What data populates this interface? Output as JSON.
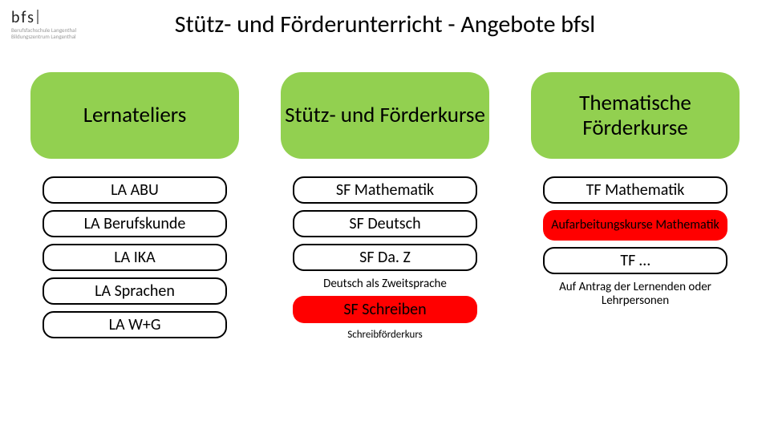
{
  "logo": {
    "text": "bfs",
    "sub1": "Berufsfachschule Langenthal",
    "sub2": "Bildungszentrum Langenthal"
  },
  "title": "Stütz- und Förderunterricht - Angebote bfsl",
  "colors": {
    "header_bg": "#92d050",
    "pill_bg": "#ffffff",
    "pill_border": "#000000",
    "pill_alt_bg": "#ff0000",
    "pill_alt_text": "#000000"
  },
  "columns": [
    {
      "header": "Lernateliers",
      "items": [
        {
          "kind": "pill",
          "text": "LA ABU"
        },
        {
          "kind": "pill",
          "text": "LA Berufskunde"
        },
        {
          "kind": "pill",
          "text": "LA IKA"
        },
        {
          "kind": "pill",
          "text": "LA Sprachen"
        },
        {
          "kind": "pill",
          "text": "LA W+G"
        }
      ]
    },
    {
      "header": "Stütz- und Förderkurse",
      "items": [
        {
          "kind": "pill",
          "text": "SF Mathematik"
        },
        {
          "kind": "pill",
          "text": "SF Deutsch"
        },
        {
          "kind": "pill",
          "text": "SF Da. Z"
        },
        {
          "kind": "sub",
          "text": "Deutsch als Zweitsprache"
        },
        {
          "kind": "pill-alt",
          "text": "SF Schreiben"
        },
        {
          "kind": "sub-tiny",
          "text": "Schreibförderkurs"
        }
      ]
    },
    {
      "header": "Thematische Förderkurse",
      "items": [
        {
          "kind": "pill",
          "text": "TF Mathematik"
        },
        {
          "kind": "pill-alt-small",
          "text": "Aufarbeitungskurse Mathematik"
        },
        {
          "kind": "pill",
          "text": "TF …"
        },
        {
          "kind": "sub",
          "text": "Auf Antrag der Lernenden oder Lehrpersonen"
        }
      ]
    }
  ]
}
